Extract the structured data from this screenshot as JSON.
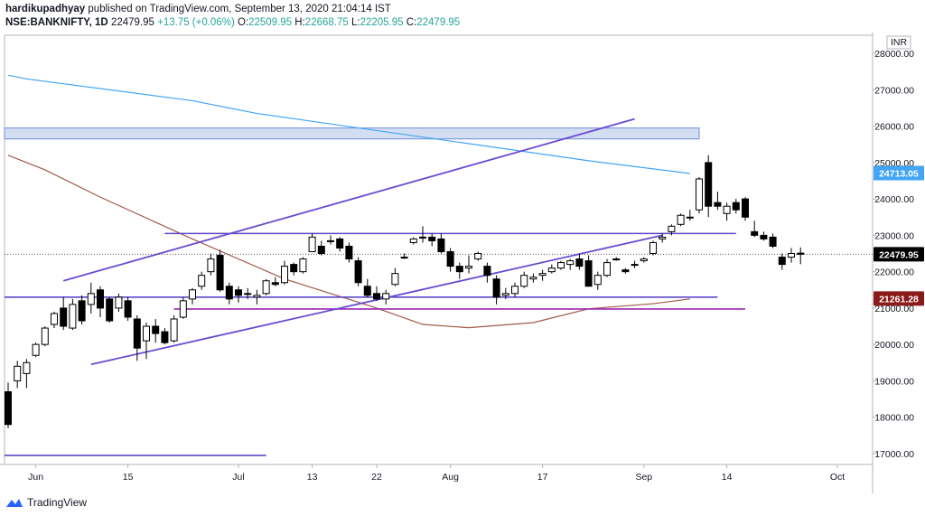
{
  "header": {
    "author": "hardikupadhyay",
    "published": "published on TradingView.com, September 13, 2020 21:04:14 IST"
  },
  "ohlc": {
    "symbol": "NSE:BANKNIFTY, 1D",
    "last": "22479.95",
    "change": "+13.75 (+0.06%)",
    "o_label": "O:",
    "o": "22509.95",
    "h_label": "H:",
    "h": "22668.75",
    "l_label": "L:",
    "l": "22205.95",
    "c_label": "C:",
    "c": "22479.95"
  },
  "footer": {
    "brand": "TradingView"
  },
  "colors": {
    "up": "#26a69a",
    "candle": "#000000",
    "trend": "#6a4bd1",
    "hline": "#5e47c9",
    "magenta": "#9c27b0",
    "ma_blue": "#42a5f5",
    "ma_brown": "#a1574b",
    "zone": "#c5d3ee"
  },
  "chart_data": {
    "type": "candlestick",
    "currency": "INR",
    "ylim": [
      16700,
      28500
    ],
    "y_ticks": [
      "17000.00",
      "18000.00",
      "19000.00",
      "20000.00",
      "21000.00",
      "22000.00",
      "23000.00",
      "24000.00",
      "25000.00",
      "26000.00",
      "27000.00",
      "28000.00"
    ],
    "x_ticks": [
      "Jun",
      "15",
      "Jul",
      "13",
      "22",
      "Aug",
      "17",
      "Sep",
      "14",
      "Oct"
    ],
    "price_badges": [
      {
        "label": "24713.05",
        "value": 24713.05,
        "color": "#42a5f5"
      },
      {
        "label": "22479.95",
        "value": 22479.95,
        "color": "#000000"
      },
      {
        "label": "21261.28",
        "value": 21261.28,
        "color": "#8b1a1a"
      }
    ],
    "candles": [
      [
        18700,
        18950,
        17700,
        17800
      ],
      [
        19000,
        19550,
        18800,
        19400
      ],
      [
        19200,
        19600,
        18800,
        19500
      ],
      [
        19700,
        20050,
        19650,
        20000
      ],
      [
        20000,
        20500,
        19950,
        20450
      ],
      [
        20550,
        20900,
        20450,
        20850
      ],
      [
        21000,
        21300,
        20400,
        20500
      ],
      [
        20450,
        21250,
        20400,
        21100
      ],
      [
        21200,
        21350,
        20550,
        20650
      ],
      [
        21100,
        21700,
        20850,
        21400
      ],
      [
        21500,
        21600,
        20750,
        21000
      ],
      [
        21250,
        21300,
        20600,
        20650
      ],
      [
        21000,
        21400,
        20900,
        21300
      ],
      [
        21200,
        21300,
        20650,
        20750
      ],
      [
        20700,
        20800,
        19550,
        19900
      ],
      [
        20100,
        20600,
        19600,
        20500
      ],
      [
        20500,
        20700,
        20050,
        20300
      ],
      [
        20350,
        20450,
        20000,
        20050
      ],
      [
        20100,
        20800,
        20050,
        20700
      ],
      [
        20750,
        21300,
        20700,
        21200
      ],
      [
        21250,
        21550,
        21100,
        21500
      ],
      [
        21600,
        22000,
        21500,
        21900
      ],
      [
        22000,
        22500,
        21900,
        22350
      ],
      [
        22450,
        22600,
        21450,
        21500
      ],
      [
        21600,
        21700,
        21100,
        21250
      ],
      [
        21500,
        21600,
        21150,
        21350
      ],
      [
        21400,
        21550,
        21250,
        21400
      ],
      [
        21300,
        21500,
        21100,
        21350
      ],
      [
        21400,
        21800,
        21350,
        21750
      ],
      [
        21700,
        21850,
        21600,
        21650
      ],
      [
        21700,
        22300,
        21650,
        22150
      ],
      [
        22200,
        22250,
        21900,
        22000
      ],
      [
        22000,
        22400,
        21950,
        22350
      ],
      [
        22550,
        23050,
        22550,
        22950
      ],
      [
        22700,
        22850,
        22450,
        22500
      ],
      [
        22850,
        23000,
        22750,
        22850
      ],
      [
        22900,
        22950,
        22550,
        22650
      ],
      [
        22700,
        22800,
        22250,
        22350
      ],
      [
        22300,
        22400,
        21600,
        21700
      ],
      [
        21600,
        21800,
        21300,
        21350
      ],
      [
        21400,
        21600,
        21200,
        21250
      ],
      [
        21250,
        21500,
        21100,
        21400
      ],
      [
        21650,
        22100,
        21600,
        21950
      ],
      [
        22400,
        22500,
        22350,
        22400
      ],
      [
        22800,
        22950,
        22750,
        22900
      ],
      [
        22950,
        23250,
        22800,
        22950
      ],
      [
        22950,
        23050,
        22700,
        22850
      ],
      [
        22900,
        23050,
        22500,
        22550
      ],
      [
        22550,
        22650,
        22000,
        22150
      ],
      [
        22150,
        22250,
        21800,
        22000
      ],
      [
        22100,
        22450,
        21950,
        22150
      ],
      [
        22350,
        22550,
        22300,
        22500
      ],
      [
        22150,
        22250,
        21700,
        21900
      ],
      [
        21800,
        21900,
        21100,
        21300
      ],
      [
        21350,
        21550,
        21250,
        21400
      ],
      [
        21400,
        21700,
        21300,
        21600
      ],
      [
        21600,
        22000,
        21550,
        21900
      ],
      [
        21800,
        21950,
        21700,
        21850
      ],
      [
        21900,
        22050,
        21750,
        21950
      ],
      [
        22000,
        22200,
        21950,
        22100
      ],
      [
        22100,
        22300,
        22050,
        22250
      ],
      [
        22200,
        22350,
        22050,
        22300
      ],
      [
        22350,
        22500,
        22050,
        22150
      ],
      [
        22300,
        22450,
        21600,
        21600
      ],
      [
        21650,
        22000,
        21500,
        21900
      ],
      [
        21900,
        22350,
        21850,
        22250
      ],
      [
        22350,
        22400,
        22300,
        22350
      ],
      [
        22050,
        22100,
        21950,
        22000
      ],
      [
        22200,
        22300,
        22100,
        22200
      ],
      [
        22300,
        22400,
        22250,
        22350
      ],
      [
        22500,
        22850,
        22450,
        22800
      ],
      [
        22900,
        23050,
        22800,
        22950
      ],
      [
        23100,
        23300,
        23000,
        23250
      ],
      [
        23300,
        23600,
        23250,
        23550
      ],
      [
        23500,
        23700,
        23400,
        23500
      ],
      [
        23700,
        24600,
        23600,
        24550
      ],
      [
        25000,
        25200,
        23500,
        23800
      ],
      [
        23900,
        24200,
        23700,
        23800
      ],
      [
        23600,
        23900,
        23400,
        23800
      ],
      [
        23900,
        24000,
        23600,
        23700
      ],
      [
        24000,
        24050,
        23400,
        23500
      ],
      [
        23100,
        23400,
        22950,
        23000
      ],
      [
        23000,
        23100,
        22850,
        22900
      ],
      [
        22950,
        23050,
        22650,
        22700
      ],
      [
        22400,
        22500,
        22050,
        22200
      ],
      [
        22400,
        22650,
        22250,
        22500
      ],
      [
        22509.95,
        22668.75,
        22205.95,
        22479.95
      ]
    ],
    "lines": [
      {
        "name": "",
        "kind": "trend",
        "points": [
          [
            6,
            21750
          ],
          [
            68,
            26200
          ]
        ]
      },
      {
        "name": "",
        "kind": "trend",
        "points": [
          [
            9,
            19450
          ],
          [
            71,
            23000
          ]
        ]
      },
      {
        "name": "",
        "kind": "level",
        "value": 23050
      },
      {
        "name": "",
        "kind": "level",
        "value": 21300
      },
      {
        "name": "",
        "kind": "level",
        "value": 20975
      },
      {
        "name": "",
        "kind": "level",
        "value": 16950
      },
      {
        "name": "",
        "kind": "zone",
        "value_low": 25650,
        "value_high": 25950
      }
    ],
    "series": [
      {
        "name": "",
        "points": [
          [
            0,
            27400
          ],
          [
            2,
            27300
          ],
          [
            20,
            26700
          ],
          [
            27,
            26350
          ],
          [
            45,
            25700
          ],
          [
            63,
            25050
          ],
          [
            74,
            24700
          ]
        ]
      },
      {
        "name": "",
        "points": [
          [
            0,
            25200
          ],
          [
            4,
            24800
          ],
          [
            10,
            24050
          ],
          [
            20,
            22900
          ],
          [
            30,
            21800
          ],
          [
            40,
            21000
          ],
          [
            45,
            20550
          ],
          [
            50,
            20460
          ],
          [
            57,
            20600
          ],
          [
            63,
            20980
          ],
          [
            70,
            21120
          ],
          [
            74,
            21250
          ]
        ]
      }
    ]
  }
}
